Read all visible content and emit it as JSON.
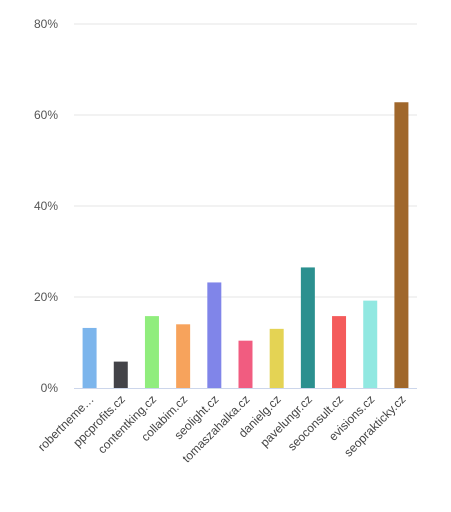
{
  "chart_data": {
    "type": "bar",
    "title": "",
    "xlabel": "",
    "ylabel": "",
    "ylim": [
      0,
      80
    ],
    "y_ticks": [
      "0%",
      "20%",
      "40%",
      "60%",
      "80%"
    ],
    "y_tick_values": [
      0,
      20,
      40,
      60,
      80
    ],
    "grid": true,
    "legend": "none",
    "categories": [
      "robertneme…",
      "ppcprofits.cz",
      "contentking.cz",
      "collabim.cz",
      "seolight.cz",
      "tomaszahalka.cz",
      "danielg.cz",
      "pavelungr.cz",
      "seoconsult.cz",
      "evisions.cz",
      "seoprakticky.cz"
    ],
    "values": [
      13.2,
      5.8,
      15.8,
      14.0,
      23.2,
      10.4,
      13.0,
      26.5,
      15.8,
      19.2,
      62.8
    ],
    "colors": [
      "#7cb5ec",
      "#434348",
      "#90ed7d",
      "#f7a35c",
      "#8085e9",
      "#f15c80",
      "#e4d354",
      "#2b908f",
      "#f45b5b",
      "#91e8e1",
      "#a0672b"
    ]
  }
}
